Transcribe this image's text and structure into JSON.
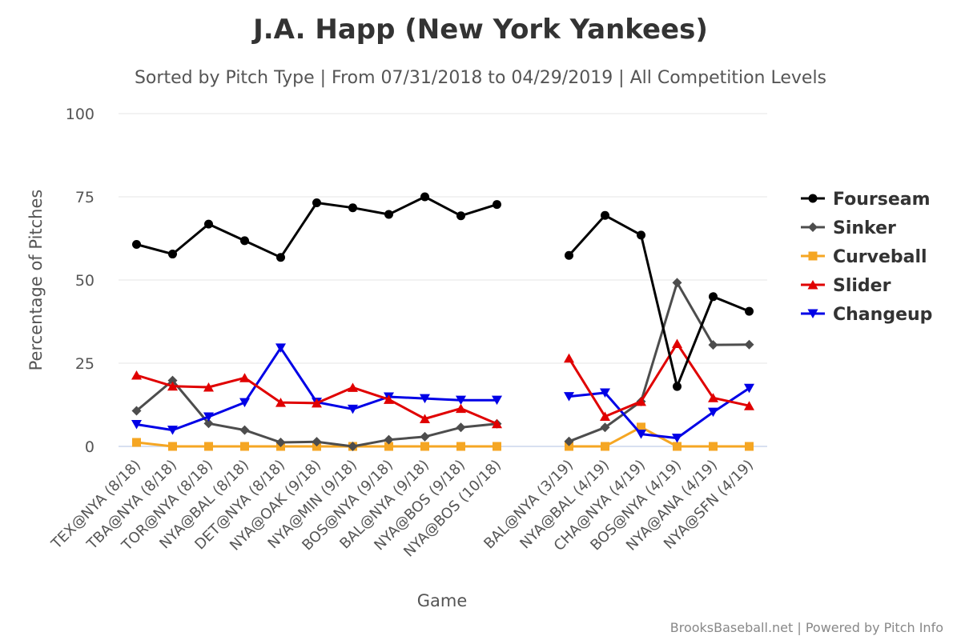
{
  "chart_data": {
    "type": "line",
    "title": "J.A. Happ (New York Yankees)",
    "subtitle": "Sorted by Pitch Type | From 07/31/2018 to 04/29/2019 | All Competition Levels",
    "xlabel": "Game",
    "ylabel": "Percentage of Pitches",
    "ylim": [
      0,
      100
    ],
    "yticks": [
      "0",
      "25",
      "50",
      "75",
      "100"
    ],
    "grid": true,
    "legend_position": "right",
    "categories": [
      "TEX@NYA (8/18)",
      "TBA@NYA (8/18)",
      "TOR@NYA (8/18)",
      "NYA@BAL (8/18)",
      "DET@NYA (8/18)",
      "NYA@OAK (9/18)",
      "NYA@MIN (9/18)",
      "BOS@NYA (9/18)",
      "BAL@NYA (9/18)",
      "NYA@BOS (9/18)",
      "NYA@BOS (10/18)",
      "",
      "BAL@NYA (3/19)",
      "NYA@BAL (4/19)",
      "CHA@NYA (4/19)",
      "BOS@NYA (4/19)",
      "NYA@ANA (4/19)",
      "NYA@SFN (4/19)"
    ],
    "series": [
      {
        "name": "Fourseam",
        "color": "#000000",
        "marker": "circle",
        "values": [
          60.7,
          57.8,
          66.8,
          61.8,
          56.8,
          73.2,
          71.7,
          69.7,
          75.0,
          69.3,
          72.7,
          null,
          57.4,
          69.4,
          63.5,
          18.0,
          45.0,
          40.6
        ]
      },
      {
        "name": "Sinker",
        "color": "#4d4d4d",
        "marker": "diamond",
        "values": [
          10.7,
          19.8,
          6.9,
          4.9,
          1.2,
          1.4,
          0.0,
          2.0,
          2.9,
          5.7,
          6.8,
          null,
          1.5,
          5.7,
          13.5,
          49.2,
          30.5,
          30.6
        ]
      },
      {
        "name": "Curveball",
        "color": "#f5a623",
        "marker": "square",
        "values": [
          1.2,
          0.0,
          0.0,
          0.0,
          0.0,
          0.0,
          0.0,
          0.0,
          0.0,
          0.0,
          0.0,
          null,
          0.0,
          0.0,
          5.8,
          0.0,
          0.0,
          0.0
        ]
      },
      {
        "name": "Slider",
        "color": "#e00000",
        "marker": "triangle-up",
        "values": [
          21.4,
          18.1,
          17.8,
          20.6,
          13.2,
          13.0,
          17.7,
          14.1,
          8.3,
          11.4,
          6.8,
          null,
          26.5,
          9.0,
          13.5,
          30.9,
          14.6,
          12.2
        ]
      },
      {
        "name": "Changeup",
        "color": "#0000e6",
        "marker": "triangle-down",
        "values": [
          6.6,
          4.9,
          8.9,
          13.2,
          29.6,
          13.3,
          11.2,
          14.9,
          14.4,
          13.9,
          13.9,
          null,
          15.0,
          16.1,
          3.7,
          2.5,
          10.3,
          17.5
        ]
      }
    ],
    "credits": "BrooksBaseball.net | Powered by Pitch Info"
  }
}
